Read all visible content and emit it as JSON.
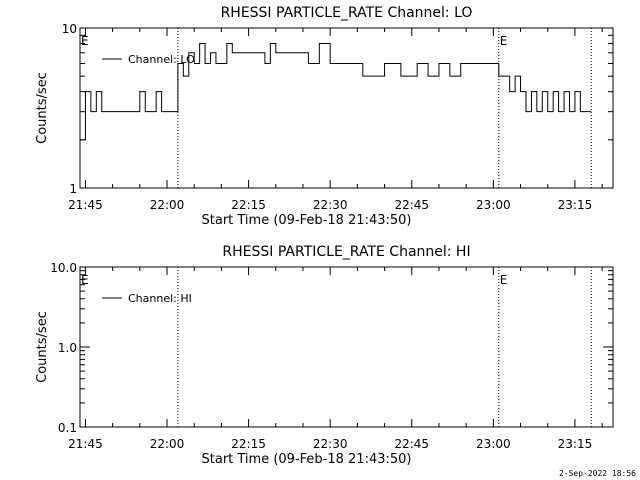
{
  "timestamp": "2-Sep-2022 18:56",
  "chart_data": [
    {
      "type": "line",
      "title": "RHESSI PARTICLE_RATE Channel: LO",
      "xlabel": "Start Time (09-Feb-18 21:43:50)",
      "ylabel": "Counts/sec",
      "yscale": "log",
      "ylim": [
        1,
        10
      ],
      "xlim": [
        "21:44",
        "23:22"
      ],
      "x_ticks": [
        "21:45",
        "22:00",
        "22:15",
        "22:30",
        "22:45",
        "23:00",
        "23:15"
      ],
      "y_ticks": [
        "1",
        "10"
      ],
      "event_lines": [
        "22:02",
        "23:01",
        "23:18"
      ],
      "event_markers": [
        {
          "label": "E",
          "x": "21:44"
        },
        {
          "label": "E",
          "x": "23:01"
        }
      ],
      "legend": {
        "position": "top-left",
        "entries": [
          "Channel: LO"
        ]
      },
      "series": [
        {
          "name": "Channel: LO",
          "x": [
            "21:44",
            "21:45",
            "21:46",
            "21:47",
            "21:48",
            "21:50",
            "21:52",
            "21:54",
            "21:55",
            "21:56",
            "21:57",
            "21:58",
            "21:59",
            "22:00",
            "22:01",
            "22:02",
            "22:03",
            "22:04",
            "22:05",
            "22:06",
            "22:07",
            "22:08",
            "22:09",
            "22:10",
            "22:11",
            "22:12",
            "22:14",
            "22:16",
            "22:18",
            "22:19",
            "22:20",
            "22:22",
            "22:24",
            "22:26",
            "22:28",
            "22:30",
            "22:32",
            "22:34",
            "22:36",
            "22:38",
            "22:40",
            "22:42",
            "22:43",
            "22:44",
            "22:46",
            "22:48",
            "22:50",
            "22:52",
            "22:54",
            "22:56",
            "22:58",
            "23:00",
            "23:01",
            "23:02",
            "23:03",
            "23:04",
            "23:05",
            "23:06",
            "23:07",
            "23:08",
            "23:09",
            "23:10",
            "23:11",
            "23:12",
            "23:13",
            "23:14",
            "23:15",
            "23:16",
            "23:17",
            "23:18"
          ],
          "values": [
            2,
            4,
            3,
            4,
            3,
            3,
            3,
            3,
            4,
            3,
            3,
            4,
            3,
            3,
            3,
            6,
            5,
            7,
            6,
            8,
            6,
            7,
            6,
            6,
            8,
            7,
            7,
            7,
            6,
            8,
            7,
            7,
            7,
            6,
            8,
            6,
            6,
            6,
            5,
            5,
            6,
            6,
            5,
            5,
            6,
            5,
            6,
            5,
            6,
            6,
            6,
            6,
            5,
            5,
            4,
            5,
            4,
            3,
            4,
            3,
            4,
            3,
            4,
            3,
            4,
            3,
            4,
            3,
            3,
            3
          ]
        }
      ]
    },
    {
      "type": "line",
      "title": "RHESSI PARTICLE_RATE Channel: HI",
      "xlabel": "Start Time (09-Feb-18 21:43:50)",
      "ylabel": "Counts/sec",
      "yscale": "log",
      "ylim": [
        0.1,
        10
      ],
      "xlim": [
        "21:44",
        "23:22"
      ],
      "x_ticks": [
        "21:45",
        "22:00",
        "22:15",
        "22:30",
        "22:45",
        "23:00",
        "23:15"
      ],
      "y_ticks": [
        "0.1",
        "1.0",
        "10.0"
      ],
      "event_lines": [
        "22:02",
        "23:01",
        "23:18"
      ],
      "event_markers": [
        {
          "label": "E",
          "x": "21:44"
        },
        {
          "label": "E",
          "x": "23:01"
        }
      ],
      "legend": {
        "position": "top-left",
        "entries": [
          "Channel: HI"
        ]
      },
      "series": [
        {
          "name": "Channel: HI",
          "x": [],
          "values": []
        }
      ]
    }
  ]
}
